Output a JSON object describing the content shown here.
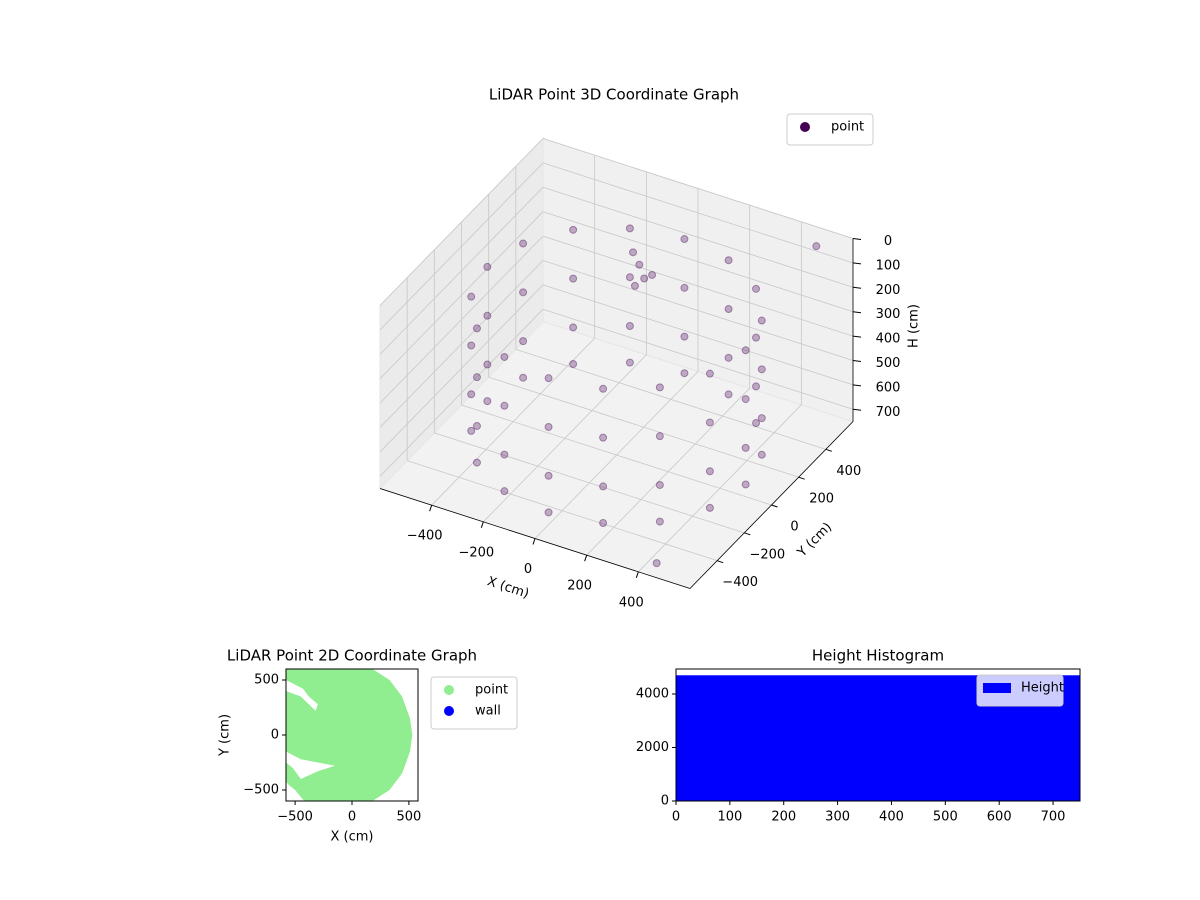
{
  "chart_data": [
    {
      "type": "scatter3d",
      "title": "LiDAR Point 3D Coordinate Graph",
      "xlabel": "X (cm)",
      "ylabel": "Y (cm)",
      "zlabel": "H (cm)",
      "series": [
        {
          "name": "point",
          "color": "#440154",
          "x": [
            500,
            462,
            354,
            191,
            0,
            -191,
            -354,
            -462,
            -500,
            -462,
            -354,
            -191,
            0,
            191,
            354,
            462,
            500,
            462,
            354,
            191,
            0,
            -191,
            -354,
            -462,
            -500,
            -462,
            -354,
            -191,
            0,
            191,
            354,
            462,
            500,
            462,
            354,
            191,
            0,
            -191,
            -354,
            -462,
            -500,
            -462,
            -354,
            -191,
            0,
            191,
            354,
            462,
            500,
            462,
            354,
            191,
            0,
            -191,
            -354,
            -462,
            -500,
            -462,
            -354,
            -191,
            0,
            191,
            354,
            462,
            -80,
            -40,
            -120,
            -60,
            -20,
            500,
            450
          ],
          "y": [
            0,
            191,
            354,
            462,
            500,
            462,
            354,
            191,
            0,
            -191,
            -354,
            -462,
            -500,
            -462,
            -354,
            -191,
            0,
            191,
            354,
            462,
            500,
            462,
            354,
            191,
            0,
            -191,
            -354,
            -462,
            -500,
            -462,
            -354,
            -191,
            0,
            191,
            354,
            462,
            500,
            462,
            354,
            191,
            0,
            -191,
            -354,
            -462,
            -500,
            -462,
            -354,
            -191,
            0,
            191,
            354,
            462,
            500,
            462,
            354,
            191,
            0,
            -191,
            -354,
            -462,
            -500,
            -462,
            -354,
            -191,
            320,
            280,
            350,
            250,
            300,
            520,
            -560
          ],
          "h": [
            150,
            150,
            150,
            150,
            150,
            150,
            150,
            150,
            150,
            150,
            150,
            150,
            150,
            150,
            150,
            150,
            350,
            350,
            350,
            350,
            350,
            350,
            350,
            350,
            350,
            350,
            350,
            350,
            350,
            350,
            350,
            350,
            550,
            550,
            550,
            550,
            550,
            550,
            550,
            550,
            550,
            550,
            550,
            550,
            550,
            550,
            550,
            550,
            700,
            700,
            700,
            700,
            700,
            700,
            700,
            700,
            700,
            700,
            700,
            700,
            700,
            700,
            700,
            700,
            180,
            200,
            160,
            220,
            190,
            20,
            720
          ]
        }
      ],
      "xlim": [
        -600,
        600
      ],
      "ylim": [
        -600,
        600
      ],
      "zlim": [
        0,
        750
      ],
      "zinvert": true,
      "xticks": [
        {
          "value": -400,
          "label": "−400"
        },
        {
          "value": -200,
          "label": "−200"
        },
        0,
        200,
        400
      ],
      "yticks": [
        {
          "value": -400,
          "label": "−400"
        },
        {
          "value": -200,
          "label": "−200"
        },
        0,
        200,
        400
      ],
      "zticks": [
        0,
        100,
        200,
        300,
        400,
        500,
        600,
        700
      ],
      "legend": "upper right"
    },
    {
      "type": "scatter",
      "title": "LiDAR Point 2D Coordinate Graph",
      "xlabel": "X (cm)",
      "ylabel": "Y (cm)",
      "series": [
        {
          "name": "point",
          "color": "#90ee90",
          "x": [
            -580,
            180,
            330,
            440,
            510,
            530,
            510,
            440,
            330,
            180,
            -420,
            -500,
            -560,
            -580,
            -580,
            -520,
            -450,
            -300,
            -150,
            -300,
            -450,
            -580,
            -580,
            -450,
            -400,
            -320,
            -300,
            -380,
            -430,
            -580
          ],
          "y": [
            600,
            600,
            500,
            350,
            150,
            0,
            -150,
            -350,
            -500,
            -600,
            -600,
            -500,
            -450,
            -420,
            -250,
            -300,
            -400,
            -330,
            -280,
            -250,
            -220,
            -150,
            400,
            350,
            300,
            220,
            280,
            350,
            420,
            500
          ]
        },
        {
          "name": "wall",
          "color": "#0000ff",
          "x": [],
          "y": []
        }
      ],
      "xlim": [
        -580,
        580
      ],
      "ylim": [
        -600,
        600
      ],
      "xticks": [
        {
          "value": -500,
          "label": "−500"
        },
        0,
        500
      ],
      "yticks": [
        {
          "value": -500,
          "label": "−500"
        },
        0,
        500
      ],
      "legend": "outside right"
    },
    {
      "type": "histogram",
      "title": "Height Histogram",
      "bins": [
        0,
        750
      ],
      "series": [
        {
          "name": "Height",
          "color": "#0000ff",
          "values": [
            4700
          ]
        }
      ],
      "xlim": [
        0,
        750
      ],
      "ylim": [
        0,
        4935
      ],
      "xticks": [
        0,
        100,
        200,
        300,
        400,
        500,
        600,
        700
      ],
      "yticks": [
        0,
        2000,
        4000
      ],
      "legend": "upper right"
    }
  ]
}
